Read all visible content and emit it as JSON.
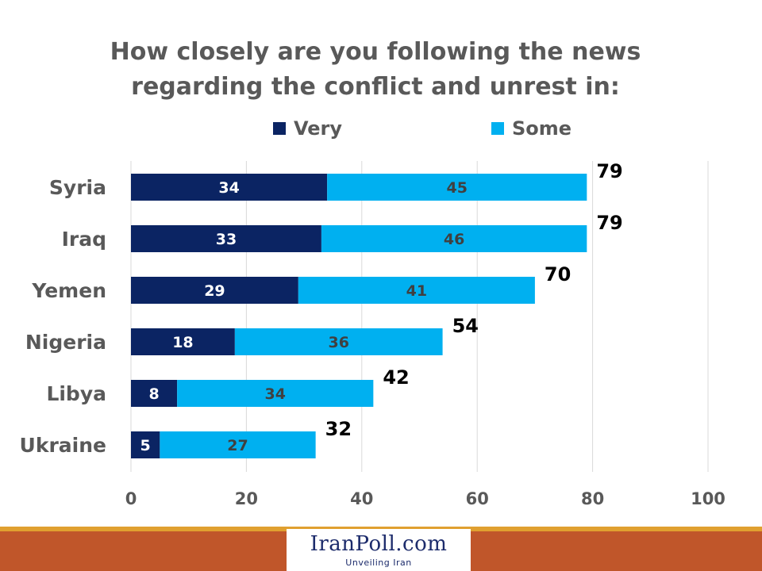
{
  "title_line1": "How closely are you following the news",
  "title_line2": "regarding the conflict and unrest in:",
  "logo_text": "IranPoll.com",
  "logo_tagline": "Unveiling Iran",
  "colors": {
    "very": "#0b2463",
    "some": "#00b0f0",
    "grid": "#d9d9d9",
    "text": "#595959"
  },
  "chart_data": {
    "type": "bar",
    "orientation": "horizontal",
    "stacked": true,
    "categories": [
      "Syria",
      "Iraq",
      "Yemen",
      "Nigeria",
      "Libya",
      "Ukraine"
    ],
    "series": [
      {
        "name": "Very",
        "values": [
          34,
          33,
          29,
          18,
          8,
          5
        ]
      },
      {
        "name": "Some",
        "values": [
          45,
          46,
          41,
          36,
          34,
          27
        ]
      }
    ],
    "totals": [
      79,
      79,
      70,
      54,
      42,
      32
    ],
    "xlim": [
      0,
      100
    ],
    "xticks": [
      0,
      20,
      40,
      60,
      80,
      100
    ],
    "grid": true,
    "legend": "top"
  }
}
